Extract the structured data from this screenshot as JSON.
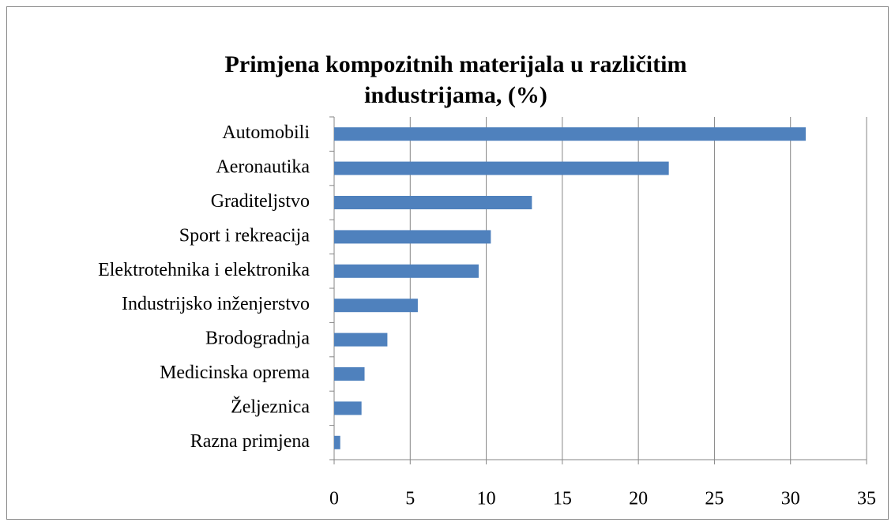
{
  "chart_data": {
    "type": "barh",
    "title": "Primjena kompozitnih materijala u različitim industrijama, (%)",
    "categories": [
      "Automobili",
      "Aeronautika",
      "Graditeljstvo",
      "Sport i rekreacija",
      "Elektrotehnika i elektronika",
      "Industrijsko inženjerstvo",
      "Brodogradnja",
      "Medicinska oprema",
      "Željeznica",
      "Razna primjena"
    ],
    "values": [
      31,
      22,
      13,
      10.3,
      9.5,
      5.5,
      3.5,
      2,
      1.8,
      0.4
    ],
    "color": "#4f81bd",
    "xlim": [
      0,
      35
    ],
    "xticks": [
      0,
      5,
      10,
      15,
      20,
      25,
      30,
      35
    ],
    "grid": true
  }
}
